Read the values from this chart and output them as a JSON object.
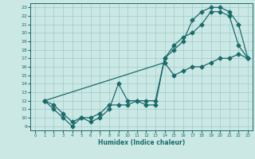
{
  "title": "",
  "xlabel": "Humidex (Indice chaleur)",
  "bg_color": "#cce8e5",
  "grid_color": "#99cccc",
  "line_color": "#1a6b6b",
  "xlim": [
    -0.5,
    23.5
  ],
  "ylim": [
    8.5,
    23.5
  ],
  "xticks": [
    0,
    1,
    2,
    3,
    4,
    5,
    6,
    7,
    8,
    9,
    10,
    11,
    12,
    13,
    14,
    15,
    16,
    17,
    18,
    19,
    20,
    21,
    22,
    23
  ],
  "yticks": [
    9,
    10,
    11,
    12,
    13,
    14,
    15,
    16,
    17,
    18,
    19,
    20,
    21,
    22,
    23
  ],
  "line1": [
    [
      1,
      12
    ],
    [
      2,
      11.5
    ],
    [
      3,
      10.5
    ],
    [
      4,
      9.5
    ],
    [
      5,
      10
    ],
    [
      6,
      10
    ],
    [
      7,
      10.5
    ],
    [
      8,
      11.5
    ],
    [
      9,
      11.5
    ],
    [
      10,
      11.5
    ],
    [
      11,
      12
    ],
    [
      12,
      11.5
    ],
    [
      13,
      11.5
    ],
    [
      14,
      17
    ],
    [
      15,
      18.5
    ],
    [
      16,
      19.5
    ],
    [
      17,
      20
    ],
    [
      18,
      21
    ],
    [
      19,
      22.5
    ],
    [
      20,
      22.5
    ],
    [
      21,
      22
    ],
    [
      22,
      18.5
    ],
    [
      23,
      17
    ]
  ],
  "line2": [
    [
      1,
      12
    ],
    [
      2,
      11
    ],
    [
      3,
      10
    ],
    [
      4,
      9
    ],
    [
      5,
      10
    ],
    [
      6,
      9.5
    ],
    [
      7,
      10
    ],
    [
      8,
      11
    ],
    [
      9,
      14
    ],
    [
      10,
      12
    ],
    [
      11,
      12
    ],
    [
      12,
      12
    ],
    [
      13,
      12
    ],
    [
      14,
      17
    ],
    [
      15,
      18
    ],
    [
      16,
      19
    ],
    [
      17,
      21.5
    ],
    [
      18,
      22.5
    ],
    [
      19,
      23
    ],
    [
      20,
      23
    ],
    [
      21,
      22.5
    ],
    [
      22,
      21
    ],
    [
      23,
      17
    ]
  ],
  "line3": [
    [
      1,
      12
    ],
    [
      14,
      16.5
    ],
    [
      15,
      15
    ],
    [
      16,
      15.5
    ],
    [
      17,
      16
    ],
    [
      18,
      16
    ],
    [
      19,
      16.5
    ],
    [
      20,
      17
    ],
    [
      21,
      17
    ],
    [
      22,
      17.5
    ],
    [
      23,
      17
    ]
  ]
}
